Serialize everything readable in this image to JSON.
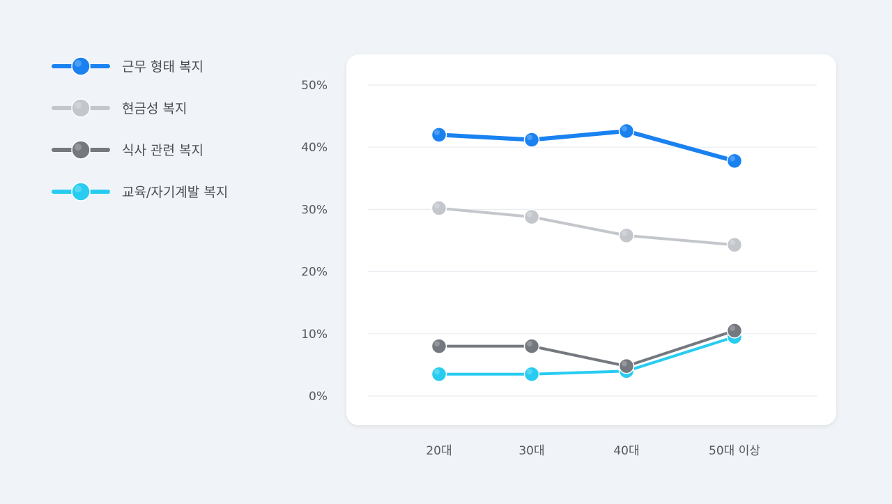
{
  "chart_data": {
    "type": "line",
    "title": "",
    "xlabel": "",
    "ylabel": "",
    "categories": [
      "20대",
      "30대",
      "40대",
      "50대 이상"
    ],
    "yticks": [
      "0%",
      "10%",
      "20%",
      "30%",
      "40%",
      "50%"
    ],
    "ylim": [
      0,
      50
    ],
    "grid": true,
    "legend_position": "left",
    "series": [
      {
        "name": "근무 형태 복지",
        "color": "#1a82f0",
        "values": [
          42.0,
          41.2,
          42.6,
          37.8
        ]
      },
      {
        "name": "현금성 복지",
        "color": "#c3c7cc",
        "values": [
          30.2,
          28.8,
          25.8,
          24.3
        ]
      },
      {
        "name": "식사 관련 복지",
        "color": "#75797f",
        "values": [
          8.0,
          8.0,
          4.8,
          10.5
        ]
      },
      {
        "name": "교육/자기계발 복지",
        "color": "#27ccf0",
        "values": [
          3.5,
          3.5,
          4.0,
          9.5
        ]
      }
    ]
  }
}
